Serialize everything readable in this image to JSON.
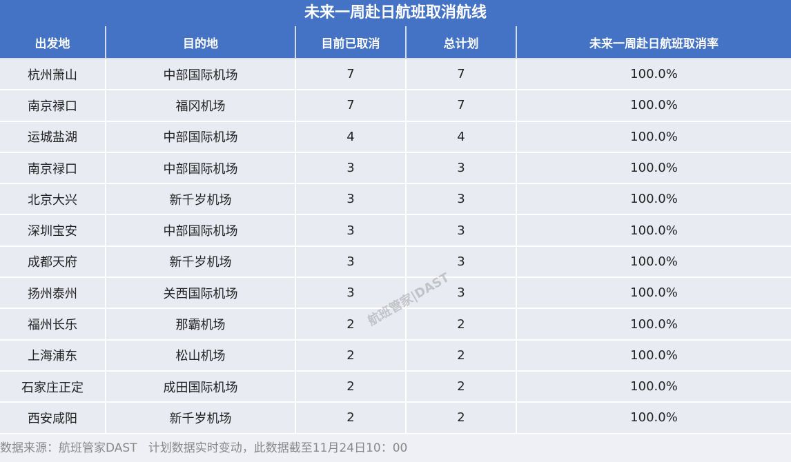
{
  "title": "未来一周赴日航班取消航线",
  "columns": [
    "出发地",
    "目的地",
    "目前已取消",
    "总计划",
    "未来一周赴日航班取消率"
  ],
  "rows": [
    [
      "杭州萧山",
      "中部国际机场",
      "7",
      "7",
      "100.0%"
    ],
    [
      "南京禄口",
      "福冈机场",
      "7",
      "7",
      "100.0%"
    ],
    [
      "运城盐湖",
      "中部国际机场",
      "4",
      "4",
      "100.0%"
    ],
    [
      "南京禄口",
      "中部国际机场",
      "3",
      "3",
      "100.0%"
    ],
    [
      "北京大兴",
      "新千岁机场",
      "3",
      "3",
      "100.0%"
    ],
    [
      "深圳宝安",
      "中部国际机场",
      "3",
      "3",
      "100.0%"
    ],
    [
      "成都天府",
      "新千岁机场",
      "3",
      "3",
      "100.0%"
    ],
    [
      "扬州泰州",
      "关西国际机场",
      "3",
      "3",
      "100.0%"
    ],
    [
      "福州长乐",
      "那霸机场",
      "2",
      "2",
      "100.0%"
    ],
    [
      "上海浦东",
      "松山机场",
      "2",
      "2",
      "100.0%"
    ],
    [
      "石家庄正定",
      "成田国际机场",
      "2",
      "2",
      "100.0%"
    ],
    [
      "西安咸阳",
      "新千岁机场",
      "2",
      "2",
      "100.0%"
    ]
  ],
  "footer": "数据来源：航班管家DAST   计划数据实时变动，此数据截至11月24日10：00",
  "watermark": "航班管家|DAST",
  "colors": {
    "header": "#4472c4",
    "row": "#e9ebf2"
  }
}
